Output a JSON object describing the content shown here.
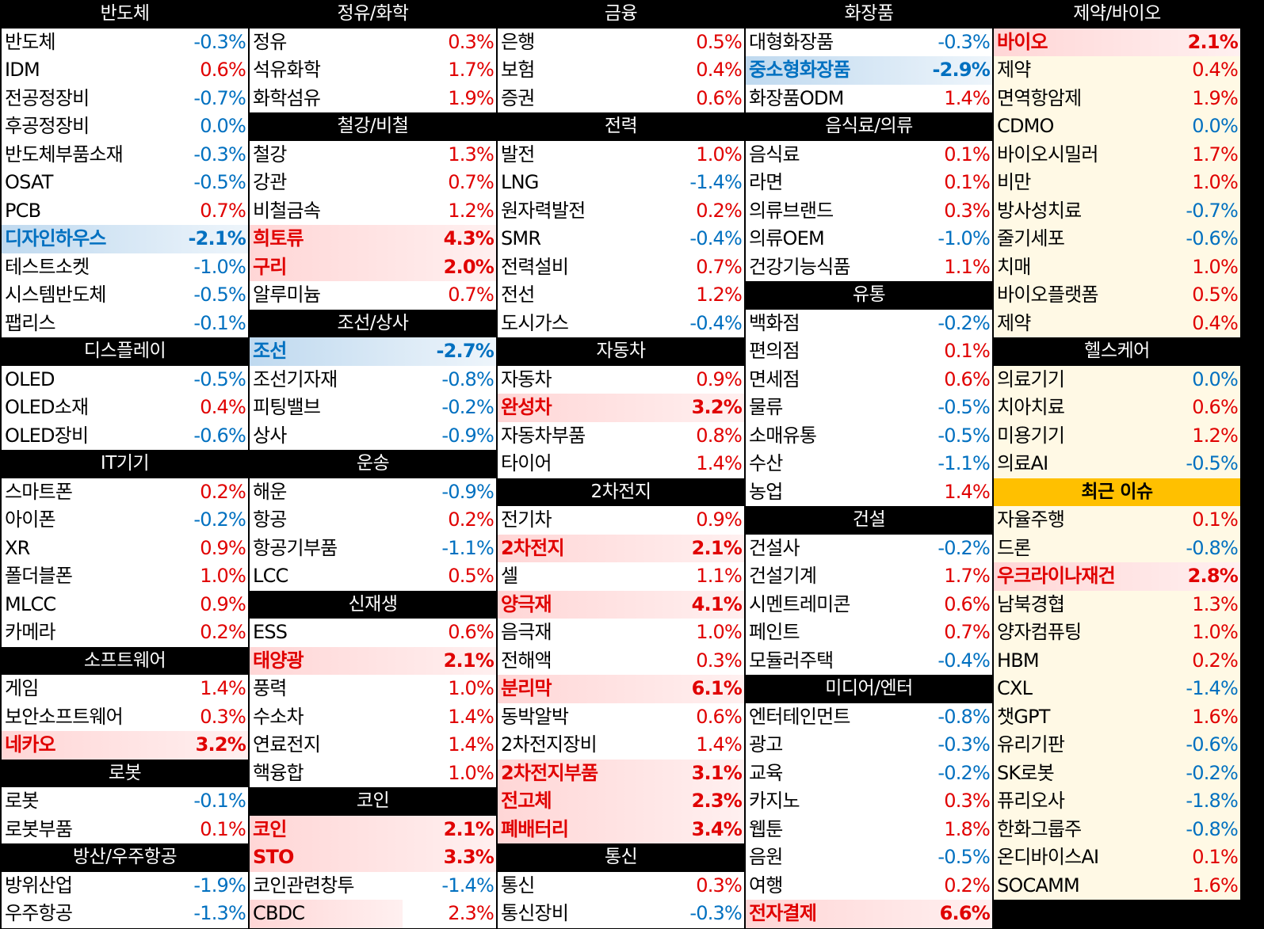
{
  "colors": {
    "up": "#e00000",
    "down": "#0070c0",
    "header_bg": "#000000",
    "issue_header_bg": "#ffc000"
  },
  "columns": [
    {
      "blocks": [
        {
          "title": "반도체",
          "items": [
            {
              "name": "반도체",
              "value": "-0.3%"
            },
            {
              "name": "IDM",
              "value": "0.6%"
            },
            {
              "name": "전공정장비",
              "value": "-0.7%"
            },
            {
              "name": "후공정장비",
              "value": "0.0%"
            },
            {
              "name": "반도체부품소재",
              "value": "-0.3%"
            },
            {
              "name": "OSAT",
              "value": "-0.5%"
            },
            {
              "name": "PCB",
              "value": "0.7%"
            },
            {
              "name": "디자인하우스",
              "value": "-2.1%",
              "hl": "cold"
            },
            {
              "name": "테스트소켓",
              "value": "-1.0%"
            },
            {
              "name": "시스템반도체",
              "value": "-0.5%"
            },
            {
              "name": "팹리스",
              "value": "-0.1%"
            }
          ]
        },
        {
          "title": "디스플레이",
          "items": [
            {
              "name": "OLED",
              "value": "-0.5%"
            },
            {
              "name": "OLED소재",
              "value": "0.4%"
            },
            {
              "name": "OLED장비",
              "value": "-0.6%"
            }
          ]
        },
        {
          "title": "IT기기",
          "items": [
            {
              "name": "스마트폰",
              "value": "0.2%"
            },
            {
              "name": "아이폰",
              "value": "-0.2%"
            },
            {
              "name": "XR",
              "value": "0.9%"
            },
            {
              "name": "폴더블폰",
              "value": "1.0%"
            },
            {
              "name": "MLCC",
              "value": "0.9%"
            },
            {
              "name": "카메라",
              "value": "0.2%"
            }
          ]
        },
        {
          "title": "소프트웨어",
          "items": [
            {
              "name": "게임",
              "value": "1.4%"
            },
            {
              "name": "보안소프트웨어",
              "value": "0.3%"
            },
            {
              "name": "네카오",
              "value": "3.2%",
              "hl": "hot"
            }
          ]
        },
        {
          "title": "로봇",
          "items": [
            {
              "name": "로봇",
              "value": "-0.1%"
            },
            {
              "name": "로봇부품",
              "value": "0.1%"
            }
          ]
        },
        {
          "title": "방산/우주항공",
          "items": [
            {
              "name": "방위산업",
              "value": "-1.9%"
            },
            {
              "name": "우주항공",
              "value": "-1.3%"
            }
          ]
        }
      ]
    },
    {
      "blocks": [
        {
          "title": "정유/화학",
          "items": [
            {
              "name": "정유",
              "value": "0.3%"
            },
            {
              "name": "석유화학",
              "value": "1.7%"
            },
            {
              "name": "화학섬유",
              "value": "1.9%"
            }
          ]
        },
        {
          "title": "철강/비철",
          "items": [
            {
              "name": "철강",
              "value": "1.3%"
            },
            {
              "name": "강관",
              "value": "0.7%"
            },
            {
              "name": "비철금속",
              "value": "1.2%"
            },
            {
              "name": "희토류",
              "value": "4.3%",
              "hl": "hot"
            },
            {
              "name": "구리",
              "value": "2.0%",
              "hl": "hot"
            },
            {
              "name": "알루미늄",
              "value": "0.7%"
            }
          ]
        },
        {
          "title": "조선/상사",
          "items": [
            {
              "name": "조선",
              "value": "-2.7%",
              "hl": "cold"
            },
            {
              "name": "조선기자재",
              "value": "-0.8%"
            },
            {
              "name": "피팅밸브",
              "value": "-0.2%"
            },
            {
              "name": "상사",
              "value": "-0.9%"
            }
          ]
        },
        {
          "title": "운송",
          "items": [
            {
              "name": "해운",
              "value": "-0.9%"
            },
            {
              "name": "항공",
              "value": "0.2%"
            },
            {
              "name": "항공기부품",
              "value": "-1.1%"
            },
            {
              "name": "LCC",
              "value": "0.5%"
            }
          ]
        },
        {
          "title": "신재생",
          "items": [
            {
              "name": "ESS",
              "value": "0.6%"
            },
            {
              "name": "태양광",
              "value": "2.1%",
              "hl": "hot"
            },
            {
              "name": "풍력",
              "value": "1.0%"
            },
            {
              "name": "수소차",
              "value": "1.4%"
            },
            {
              "name": "연료전지",
              "value": "1.4%"
            },
            {
              "name": "핵융합",
              "value": "1.0%"
            }
          ]
        },
        {
          "title": "코인",
          "items": [
            {
              "name": "코인",
              "value": "2.1%",
              "hl": "hot"
            },
            {
              "name": "STO",
              "value": "3.3%",
              "hl": "hot"
            },
            {
              "name": "코인관련창투",
              "value": "-1.4%"
            },
            {
              "name": "CBDC",
              "value": "2.3%",
              "hl": "partial"
            }
          ]
        }
      ]
    },
    {
      "blocks": [
        {
          "title": "금융",
          "items": [
            {
              "name": "은행",
              "value": "0.5%"
            },
            {
              "name": "보험",
              "value": "0.4%"
            },
            {
              "name": "증권",
              "value": "0.6%"
            }
          ]
        },
        {
          "title": "전력",
          "items": [
            {
              "name": "발전",
              "value": "1.0%"
            },
            {
              "name": "LNG",
              "value": "-1.4%"
            },
            {
              "name": "원자력발전",
              "value": "0.2%"
            },
            {
              "name": "SMR",
              "value": "-0.4%"
            },
            {
              "name": "전력설비",
              "value": "0.7%"
            },
            {
              "name": "전선",
              "value": "1.2%"
            },
            {
              "name": "도시가스",
              "value": "-0.4%"
            }
          ]
        },
        {
          "title": "자동차",
          "items": [
            {
              "name": "자동차",
              "value": "0.9%"
            },
            {
              "name": "완성차",
              "value": "3.2%",
              "hl": "hot"
            },
            {
              "name": "자동차부품",
              "value": "0.8%"
            },
            {
              "name": "타이어",
              "value": "1.4%"
            }
          ]
        },
        {
          "title": "2차전지",
          "items": [
            {
              "name": "전기차",
              "value": "0.9%"
            },
            {
              "name": "2차전지",
              "value": "2.1%",
              "hl": "hot"
            },
            {
              "name": "셀",
              "value": "1.1%"
            },
            {
              "name": "양극재",
              "value": "4.1%",
              "hl": "hot"
            },
            {
              "name": "음극재",
              "value": "1.0%"
            },
            {
              "name": "전해액",
              "value": "0.3%"
            },
            {
              "name": "분리막",
              "value": "6.1%",
              "hl": "hot"
            },
            {
              "name": "동박알박",
              "value": "0.6%"
            },
            {
              "name": "2차전지장비",
              "value": "1.4%"
            },
            {
              "name": "2차전지부품",
              "value": "3.1%",
              "hl": "hot"
            },
            {
              "name": "전고체",
              "value": "2.3%",
              "hl": "hot"
            },
            {
              "name": "폐배터리",
              "value": "3.4%",
              "hl": "hot"
            }
          ]
        },
        {
          "title": "통신",
          "items": [
            {
              "name": "통신",
              "value": "0.3%"
            },
            {
              "name": "통신장비",
              "value": "-0.3%"
            }
          ]
        }
      ]
    },
    {
      "blocks": [
        {
          "title": "화장품",
          "items": [
            {
              "name": "대형화장품",
              "value": "-0.3%"
            },
            {
              "name": "중소형화장품",
              "value": "-2.9%",
              "hl": "cold"
            },
            {
              "name": "화장품ODM",
              "value": "1.4%"
            }
          ]
        },
        {
          "title": "음식료/의류",
          "items": [
            {
              "name": "음식료",
              "value": "0.1%"
            },
            {
              "name": "라면",
              "value": "0.1%"
            },
            {
              "name": "의류브랜드",
              "value": "0.3%"
            },
            {
              "name": "의류OEM",
              "value": "-1.0%"
            },
            {
              "name": "건강기능식품",
              "value": "1.1%"
            }
          ]
        },
        {
          "title": "유통",
          "items": [
            {
              "name": "백화점",
              "value": "-0.2%"
            },
            {
              "name": "편의점",
              "value": "0.1%"
            },
            {
              "name": "면세점",
              "value": "0.6%"
            },
            {
              "name": "물류",
              "value": "-0.5%"
            },
            {
              "name": "소매유통",
              "value": "-0.5%"
            },
            {
              "name": "수산",
              "value": "-1.1%"
            },
            {
              "name": "농업",
              "value": "1.4%"
            }
          ]
        },
        {
          "title": "건설",
          "items": [
            {
              "name": "건설사",
              "value": "-0.2%"
            },
            {
              "name": "건설기계",
              "value": "1.7%"
            },
            {
              "name": "시멘트레미콘",
              "value": "0.6%"
            },
            {
              "name": "페인트",
              "value": "0.7%"
            },
            {
              "name": "모듈러주택",
              "value": "-0.4%"
            }
          ]
        },
        {
          "title": "미디어/엔터",
          "items": [
            {
              "name": "엔터테인먼트",
              "value": "-0.8%"
            },
            {
              "name": "광고",
              "value": "-0.3%"
            },
            {
              "name": "교육",
              "value": "-0.2%"
            },
            {
              "name": "카지노",
              "value": "0.3%"
            },
            {
              "name": "웹툰",
              "value": "1.8%"
            },
            {
              "name": "음원",
              "value": "-0.5%"
            },
            {
              "name": "여행",
              "value": "0.2%"
            },
            {
              "name": "전자결제",
              "value": "6.6%",
              "hl": "hot"
            }
          ]
        }
      ]
    },
    {
      "blocks": [
        {
          "title": "제약/바이오",
          "items": [
            {
              "name": "바이오",
              "value": "2.1%",
              "hl": "hot"
            },
            {
              "name": "제약",
              "value": "0.4%"
            },
            {
              "name": "면역항암제",
              "value": "1.9%"
            },
            {
              "name": "CDMO",
              "value": "0.0%"
            },
            {
              "name": "바이오시밀러",
              "value": "1.7%"
            },
            {
              "name": "비만",
              "value": "1.0%"
            },
            {
              "name": "방사성치료",
              "value": "-0.7%"
            },
            {
              "name": "줄기세포",
              "value": "-0.6%"
            },
            {
              "name": "치매",
              "value": "1.0%"
            },
            {
              "name": "바이오플랫폼",
              "value": "0.5%"
            },
            {
              "name": "제약",
              "value": "0.4%"
            }
          ]
        },
        {
          "title": "헬스케어",
          "items": [
            {
              "name": "의료기기",
              "value": "0.0%"
            },
            {
              "name": "치아치료",
              "value": "0.6%"
            },
            {
              "name": "미용기기",
              "value": "1.2%"
            },
            {
              "name": "의료AI",
              "value": "-0.5%"
            }
          ]
        },
        {
          "title": "최근 이슈",
          "issue": true,
          "items": [
            {
              "name": "자율주행",
              "value": "0.1%"
            },
            {
              "name": "드론",
              "value": "-0.8%"
            },
            {
              "name": "우크라이나재건",
              "value": "2.8%",
              "hl": "hot"
            },
            {
              "name": "남북경협",
              "value": "1.3%"
            },
            {
              "name": "양자컴퓨팅",
              "value": "1.0%"
            },
            {
              "name": "HBM",
              "value": "0.2%"
            },
            {
              "name": "CXL",
              "value": "-1.4%"
            },
            {
              "name": "챗GPT",
              "value": "1.6%"
            },
            {
              "name": "유리기판",
              "value": "-0.6%"
            },
            {
              "name": "SK로봇",
              "value": "-0.2%"
            },
            {
              "name": "퓨리오사",
              "value": "-1.8%"
            },
            {
              "name": "한화그룹주",
              "value": "-0.8%"
            },
            {
              "name": "온디바이스AI",
              "value": "0.1%"
            },
            {
              "name": "SOCAMM",
              "value": "1.6%"
            }
          ]
        }
      ]
    }
  ]
}
